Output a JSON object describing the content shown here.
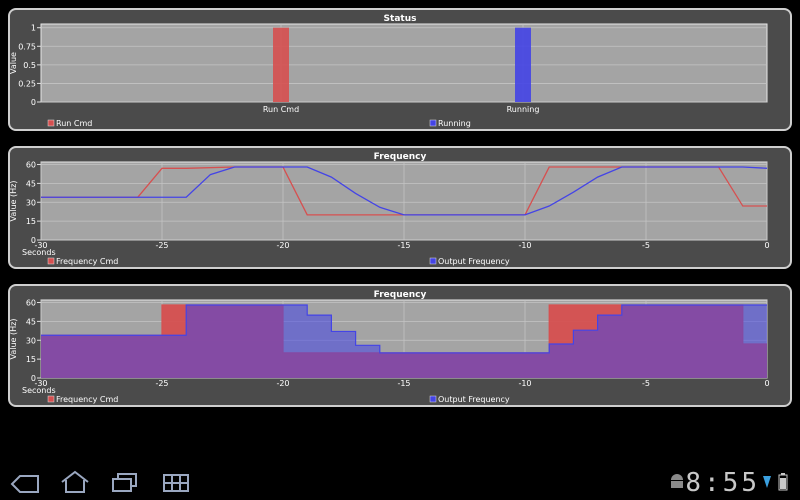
{
  "colors": {
    "red": "#d65050",
    "blue": "#4444e6",
    "overlap": "#7a2e9e",
    "plot_bg": "#a4a4a4",
    "panel_bg": "#4b4b4b"
  },
  "chart_data": [
    {
      "type": "bar",
      "title": "Status",
      "ylabel": "Value",
      "categories": [
        "Run Cmd",
        "Running"
      ],
      "values": [
        1,
        1
      ],
      "ylim": [
        0,
        1.05
      ],
      "yticks": [
        "0",
        "0.25",
        "0.5",
        "0.75",
        "1"
      ],
      "legend": [
        "Run Cmd",
        "Running"
      ],
      "legend_placement": "bottom",
      "grid": true
    },
    {
      "type": "line",
      "title": "Frequency",
      "xlabel": "Seconds",
      "ylabel": "Value (Hz)",
      "xlim": [
        -30,
        0
      ],
      "ylim": [
        0,
        62
      ],
      "xticks": [
        "-30",
        "-25",
        "-20",
        "-15",
        "-10",
        "-5",
        "0"
      ],
      "yticks": [
        "0",
        "15",
        "30",
        "45",
        "60"
      ],
      "legend_placement": "bottom",
      "grid": true,
      "series": [
        {
          "name": "Frequency Cmd",
          "x": [
            -30,
            -26,
            -25,
            -24,
            -22,
            -20,
            -19,
            -15,
            -10,
            -9,
            -6,
            -2,
            -1,
            0
          ],
          "y": [
            34,
            34,
            57,
            57,
            58,
            58,
            20,
            20,
            20,
            58,
            58,
            58,
            27,
            27
          ]
        },
        {
          "name": "Output Frequency",
          "x": [
            -30,
            -24,
            -23,
            -22,
            -20,
            -19,
            -18,
            -17,
            -16,
            -15,
            -12,
            -10,
            -9,
            -8,
            -7,
            -6,
            -2,
            -1,
            0
          ],
          "y": [
            34,
            34,
            52,
            58,
            58,
            58,
            50,
            37,
            26,
            20,
            20,
            20,
            27,
            38,
            50,
            58,
            58,
            58,
            57
          ]
        }
      ]
    },
    {
      "type": "area",
      "title": "Frequency",
      "xlabel": "Seconds",
      "ylabel": "Value (Hz)",
      "xlim": [
        -30,
        0
      ],
      "ylim": [
        0,
        62
      ],
      "xticks": [
        "-30",
        "-25",
        "-20",
        "-15",
        "-10",
        "-5",
        "0"
      ],
      "yticks": [
        "0",
        "15",
        "30",
        "45",
        "60"
      ],
      "legend_placement": "bottom",
      "grid": true,
      "series": [
        {
          "name": "Frequency Cmd",
          "x": [
            -30,
            -25,
            -20,
            -15,
            -9,
            -1,
            0
          ],
          "y": [
            34,
            58,
            20,
            20,
            58,
            27,
            27
          ]
        },
        {
          "name": "Output Frequency",
          "x": [
            -30,
            -24,
            -20,
            -19,
            -18,
            -17,
            -16,
            -15,
            -10,
            -9,
            -8,
            -7,
            -6,
            -1,
            0
          ],
          "y": [
            34,
            58,
            58,
            50,
            37,
            26,
            20,
            20,
            20,
            27,
            38,
            50,
            58,
            58,
            58
          ]
        }
      ]
    }
  ]
}
